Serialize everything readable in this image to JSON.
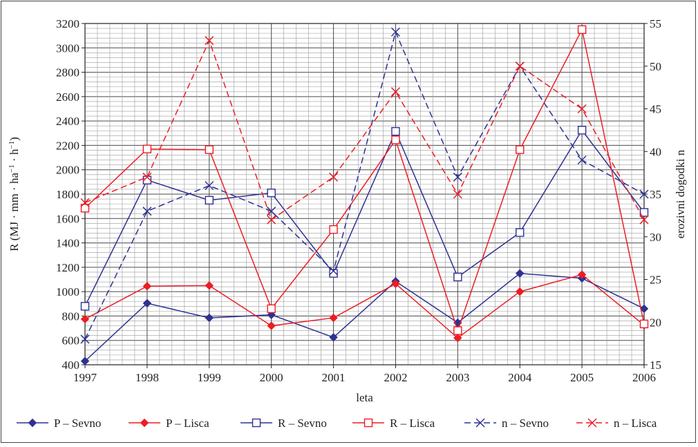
{
  "chart_data": {
    "type": "line",
    "xlabel": "leta",
    "ylabel": "R (MJ · mm · ha⁻¹ · h⁻¹)",
    "y2label": "erozivni dogodki n",
    "x": [
      "1997",
      "1998",
      "1999",
      "2000",
      "2001",
      "2002",
      "2003",
      "2004",
      "2005",
      "2006"
    ],
    "ylim": [
      400,
      3200
    ],
    "y2lim": [
      15,
      55
    ],
    "yticks": [
      "400",
      "600",
      "800",
      "1000",
      "1200",
      "1400",
      "1600",
      "1800",
      "2000",
      "2200",
      "2400",
      "2600",
      "2800",
      "3000",
      "3200"
    ],
    "y2ticks": [
      "15",
      "20",
      "25",
      "30",
      "35",
      "40",
      "45",
      "50",
      "55"
    ],
    "grid": true,
    "legend_position": "bottom",
    "series": [
      {
        "name": "P – Sevno",
        "axis": "left",
        "color": "#2e3192",
        "marker": "filled-diamond",
        "dash": "solid",
        "values": [
          430,
          905,
          785,
          810,
          625,
          1085,
          745,
          1150,
          1110,
          860
        ]
      },
      {
        "name": "P – Lisca",
        "axis": "left",
        "color": "#ed1c24",
        "marker": "filled-diamond",
        "dash": "solid",
        "values": [
          775,
          1045,
          1050,
          720,
          785,
          1065,
          620,
          1000,
          1140,
          725
        ]
      },
      {
        "name": "R – Sevno",
        "axis": "left",
        "color": "#2e3192",
        "marker": "open-square",
        "dash": "solid",
        "values": [
          880,
          1915,
          1750,
          1810,
          1150,
          2315,
          1120,
          1485,
          2325,
          1650
        ]
      },
      {
        "name": "R – Lisca",
        "axis": "left",
        "color": "#ed1c24",
        "marker": "open-square",
        "dash": "solid",
        "values": [
          1685,
          2170,
          2165,
          860,
          1510,
          2245,
          680,
          2165,
          3150,
          735
        ]
      },
      {
        "name": "n – Sevno",
        "axis": "right",
        "color": "#2e3192",
        "marker": "x",
        "dash": "dashed",
        "values": [
          18,
          33,
          36,
          33,
          26,
          54,
          37,
          50,
          39,
          35
        ]
      },
      {
        "name": "n – Lisca",
        "axis": "right",
        "color": "#ed1c24",
        "marker": "x",
        "dash": "dashed",
        "values": [
          34,
          37,
          53,
          32,
          37,
          47,
          35,
          50,
          45,
          32
        ]
      }
    ]
  }
}
